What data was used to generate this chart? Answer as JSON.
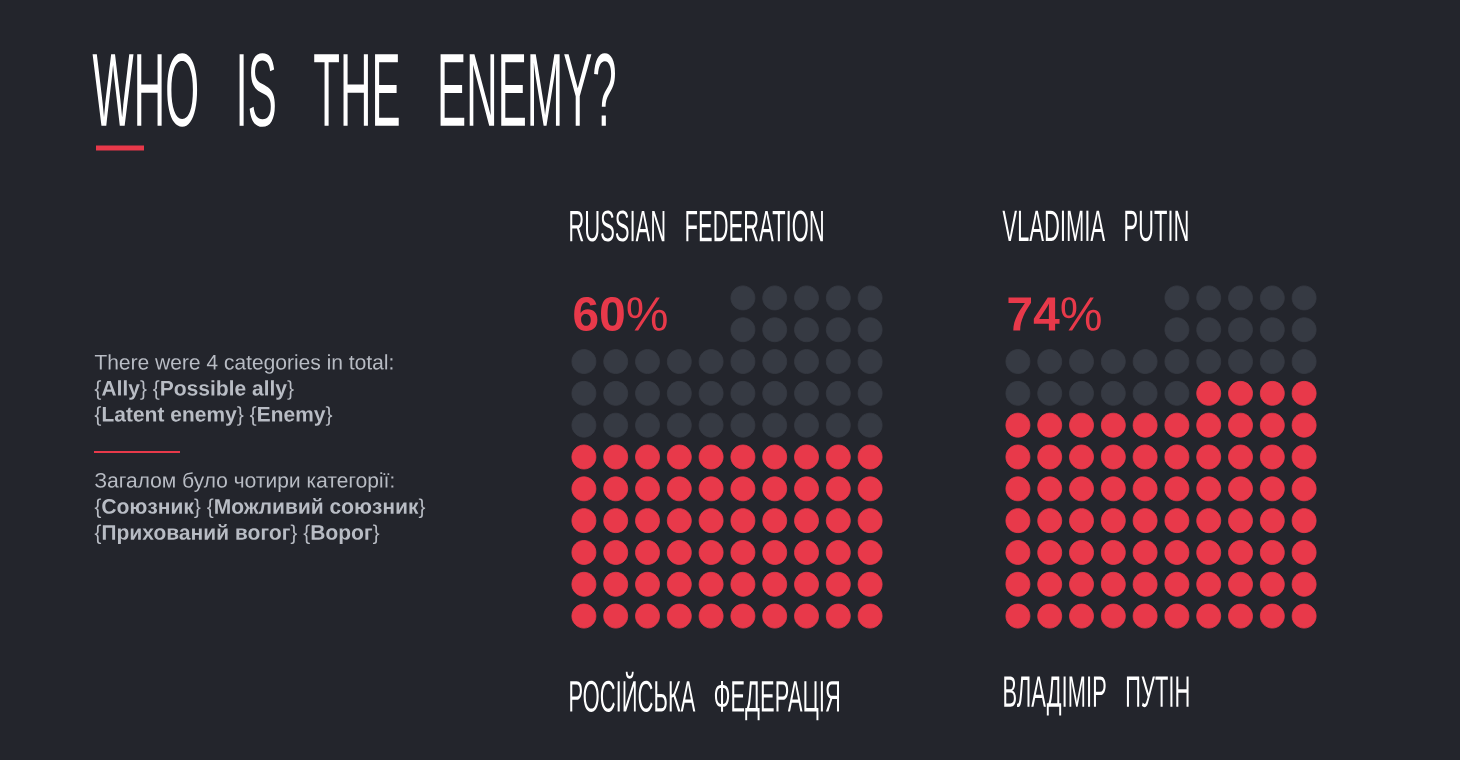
{
  "chart_data": [
    {
      "type": "other",
      "title": "WHO IS THE ENEMY?",
      "annotations": [
        "There were 4 categories in total:",
        "{**Ally**} {**Possible ally**}",
        "{**Latent enemy**} {**Enemy**}",
        "Загалом було чотири категорії:",
        "{**Союзник**} {**Можливий союзник**}",
        "{**Прихований вогог**} {**Ворог**}"
      ]
    },
    {
      "type": "other",
      "title": "RUSSIAN FEDERATION",
      "subtitle": "РОСІЙСЬКА ФЕДЕРАЦІЯ",
      "values": [
        60
      ],
      "colors": [
        "#e8394a"
      ],
      "value_labels": [
        "**60**%"
      ]
    },
    {
      "type": "other",
      "title": "VLADIMIA PUTIN",
      "subtitle": "ВЛАДІМІР ПУТІН",
      "values": [
        74
      ],
      "colors": [
        "#e8394a"
      ],
      "value_labels": [
        "**74**%"
      ]
    }
  ]
}
